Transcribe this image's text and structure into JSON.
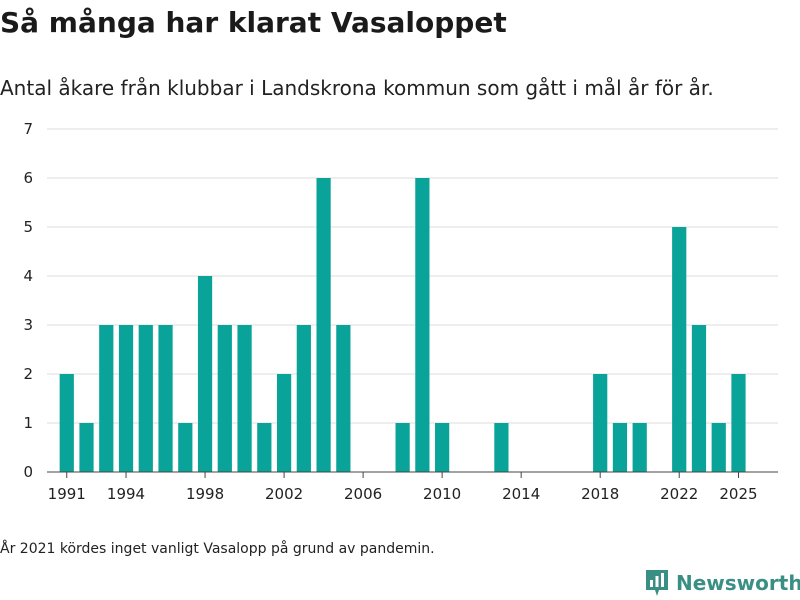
{
  "title": "Så många har klarat Vasaloppet",
  "subtitle": "Antal åkare från klubbar i Landskrona kommun som gått i mål år för år.",
  "footnote": "År 2021 kördes inget vanligt Vasalopp på grund av pandemin.",
  "brand": {
    "name": "Newsworthy",
    "icon": "newsworthy-logo-icon",
    "color": "#3a8f84"
  },
  "chart_data": {
    "type": "bar",
    "title": "",
    "xlabel": "",
    "ylabel": "",
    "bar_color": "#0aa39a",
    "grid": true,
    "xlim": [
      1990,
      2027
    ],
    "ylim": [
      0,
      7
    ],
    "y_ticks": [
      0,
      1,
      2,
      3,
      4,
      5,
      6,
      7
    ],
    "x_ticks": [
      1991,
      1994,
      1998,
      2002,
      2006,
      2010,
      2014,
      2018,
      2022,
      2025
    ],
    "x": [
      1991,
      1992,
      1993,
      1994,
      1995,
      1996,
      1997,
      1998,
      1999,
      2000,
      2001,
      2002,
      2003,
      2004,
      2005,
      2008,
      2009,
      2010,
      2013,
      2018,
      2019,
      2020,
      2022,
      2023,
      2024,
      2025
    ],
    "values": [
      2,
      1,
      3,
      3,
      3,
      3,
      1,
      4,
      3,
      3,
      1,
      2,
      3,
      6,
      3,
      1,
      6,
      1,
      1,
      2,
      1,
      1,
      5,
      3,
      1,
      2
    ]
  }
}
